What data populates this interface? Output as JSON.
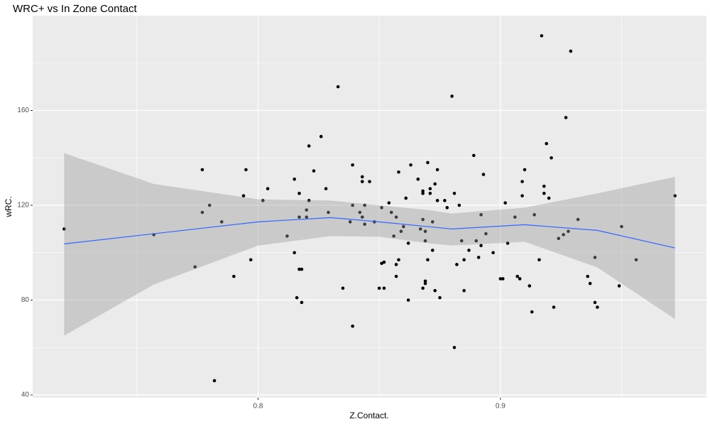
{
  "chart_data": {
    "type": "scatter",
    "title": "WRC+ vs In Zone Contact",
    "x_label": "Z.Contact.",
    "y_label": "wRC.",
    "xlim": [
      0.707,
      0.985
    ],
    "ylim": [
      38.8,
      200
    ],
    "xticks": [
      0.8,
      0.9
    ],
    "yticks": [
      40,
      80,
      120,
      160
    ],
    "x_minor_ticks": [
      0.75,
      0.85,
      0.95
    ],
    "y_minor_ticks": [
      60,
      100,
      140,
      180
    ],
    "grid": true,
    "points": {
      "color": "#000000",
      "x": [
        0.72,
        0.757,
        0.774,
        0.777,
        0.777,
        0.78,
        0.782,
        0.785,
        0.79,
        0.794,
        0.795,
        0.797,
        0.802,
        0.804,
        0.812,
        0.815,
        0.815,
        0.816,
        0.817,
        0.817,
        0.817,
        0.818,
        0.818,
        0.82,
        0.82,
        0.821,
        0.821,
        0.823,
        0.826,
        0.828,
        0.829,
        0.833,
        0.835,
        0.838,
        0.839,
        0.839,
        0.839,
        0.842,
        0.843,
        0.843,
        0.843,
        0.844,
        0.844,
        0.846,
        0.848,
        0.85,
        0.851,
        0.851,
        0.852,
        0.852,
        0.854,
        0.855,
        0.856,
        0.857,
        0.857,
        0.857,
        0.858,
        0.858,
        0.859,
        0.86,
        0.861,
        0.862,
        0.862,
        0.863,
        0.866,
        0.867,
        0.868,
        0.868,
        0.868,
        0.868,
        0.869,
        0.869,
        0.869,
        0.869,
        0.87,
        0.87,
        0.871,
        0.871,
        0.872,
        0.872,
        0.873,
        0.873,
        0.874,
        0.874,
        0.875,
        0.877,
        0.878,
        0.88,
        0.881,
        0.881,
        0.882,
        0.883,
        0.884,
        0.885,
        0.885,
        0.887,
        0.889,
        0.89,
        0.891,
        0.892,
        0.892,
        0.893,
        0.894,
        0.897,
        0.9,
        0.901,
        0.902,
        0.903,
        0.906,
        0.907,
        0.908,
        0.909,
        0.909,
        0.91,
        0.912,
        0.913,
        0.914,
        0.916,
        0.917,
        0.918,
        0.918,
        0.919,
        0.92,
        0.921,
        0.922,
        0.924,
        0.926,
        0.927,
        0.928,
        0.929,
        0.932,
        0.936,
        0.937,
        0.939,
        0.939,
        0.94,
        0.95,
        0.949,
        0.956,
        0.972
      ],
      "values": [
        110,
        107.6,
        94,
        135,
        117,
        120,
        46,
        113,
        90,
        124,
        135,
        97,
        122,
        127,
        107,
        131,
        100,
        81,
        93,
        125,
        115,
        79,
        93,
        118,
        115,
        122,
        145,
        134.5,
        149,
        127,
        117,
        170,
        85,
        113,
        137,
        120,
        69,
        117,
        115,
        132,
        130,
        120,
        112,
        130,
        113,
        85,
        119,
        95.5,
        96,
        85,
        121,
        117,
        107,
        90,
        95,
        115,
        97,
        134,
        109,
        111,
        123,
        80,
        104,
        137,
        131,
        110,
        126,
        85,
        114,
        125,
        88,
        87,
        109,
        105,
        138,
        97,
        125,
        127,
        101,
        113,
        129,
        84,
        135,
        122,
        81,
        122,
        119,
        166,
        125,
        60,
        95,
        120,
        105,
        84,
        97,
        101,
        141,
        105,
        98,
        103,
        116,
        133,
        108,
        100,
        89,
        89,
        121,
        104,
        115,
        90,
        89,
        124,
        130,
        135,
        86,
        75,
        116,
        97,
        191.5,
        128,
        125,
        146,
        123,
        140,
        77,
        106,
        107.6,
        157,
        109,
        185,
        114,
        90,
        87,
        98,
        79,
        77,
        111,
        86,
        97,
        124
      ]
    },
    "smooth": {
      "color": "#3366FF",
      "band_color": "#999999",
      "x": [
        0.72,
        0.757,
        0.8,
        0.83,
        0.85,
        0.87,
        0.88,
        0.91,
        0.94,
        0.972
      ],
      "values": [
        103.7,
        108,
        113,
        114.8,
        113,
        111,
        110,
        111.8,
        109.4,
        102
      ],
      "lower": [
        65,
        86.6,
        103,
        107,
        106.7,
        104,
        103,
        104.6,
        93.8,
        72
      ],
      "upper": [
        142,
        129,
        122.5,
        122,
        120,
        118,
        116.5,
        119,
        125,
        132
      ]
    }
  }
}
